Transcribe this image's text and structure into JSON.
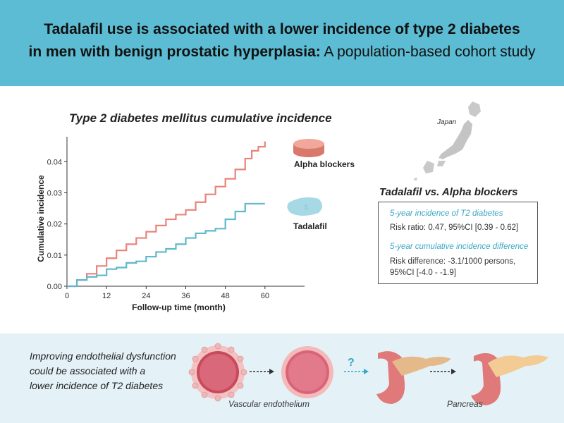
{
  "header": {
    "title_line1": "Tadalafil use is associated with a lower incidence of type 2 diabetes",
    "title_line2_bold": "in men with benign prostatic hyperplasia:",
    "title_line2_rest": " A population-based cohort study"
  },
  "map": {
    "label": "Japan"
  },
  "results": {
    "title": "Tadalafil vs. Alpha blockers",
    "section1_heading": "5-year incidence of T2 diabetes",
    "section1_text": "Risk ratio: 0.47, 95%CI [0.39 - 0.62]",
    "section2_heading": "5-year cumulative incidence difference",
    "section2_text_line1": "Risk difference: -3.1/1000 persons,",
    "section2_text_line2": "95%CI [-4.0 - -1.9]"
  },
  "bottom": {
    "text_line1": "Improving endothelial dysfunction",
    "text_line2": "could be associated with a",
    "text_line3": "lower incidence of T2 diabetes",
    "question_mark": "?",
    "caption_vascular": "Vascular endothelium",
    "caption_pancreas": "Pancreas"
  },
  "chart_data": {
    "type": "line",
    "title": "Type 2 diabetes mellitus cumulative incidence",
    "xlabel": "Follow-up time (month)",
    "ylabel": "Cumulative incidence",
    "xlim": [
      0,
      72
    ],
    "ylim": [
      0,
      0.048
    ],
    "xticks": [
      "0",
      "12",
      "24",
      "36",
      "48",
      "60"
    ],
    "yticks": [
      "0.00",
      "0.01",
      "0.02",
      "0.03",
      "0.04"
    ],
    "series": [
      {
        "name": "Alpha blockers",
        "color": "#e8837a",
        "x": [
          0,
          3,
          6,
          9,
          12,
          15,
          18,
          21,
          24,
          27,
          30,
          33,
          36,
          39,
          42,
          45,
          48,
          51,
          54,
          56,
          58,
          60
        ],
        "y": [
          0,
          0.002,
          0.004,
          0.0065,
          0.009,
          0.0115,
          0.0135,
          0.0155,
          0.0175,
          0.0195,
          0.0215,
          0.023,
          0.0245,
          0.027,
          0.0295,
          0.032,
          0.0345,
          0.0375,
          0.041,
          0.0435,
          0.0448,
          0.0465
        ]
      },
      {
        "name": "Tadalafil",
        "color": "#5fb8cb",
        "x": [
          0,
          3,
          6,
          9,
          12,
          15,
          18,
          21,
          24,
          27,
          30,
          33,
          36,
          39,
          42,
          45,
          48,
          51,
          54,
          56,
          58,
          60
        ],
        "y": [
          0,
          0.002,
          0.003,
          0.0035,
          0.0055,
          0.006,
          0.0075,
          0.008,
          0.0095,
          0.011,
          0.012,
          0.0135,
          0.0155,
          0.017,
          0.0178,
          0.0185,
          0.0215,
          0.024,
          0.0265,
          0.0265,
          0.0265,
          0.0265
        ]
      }
    ]
  }
}
